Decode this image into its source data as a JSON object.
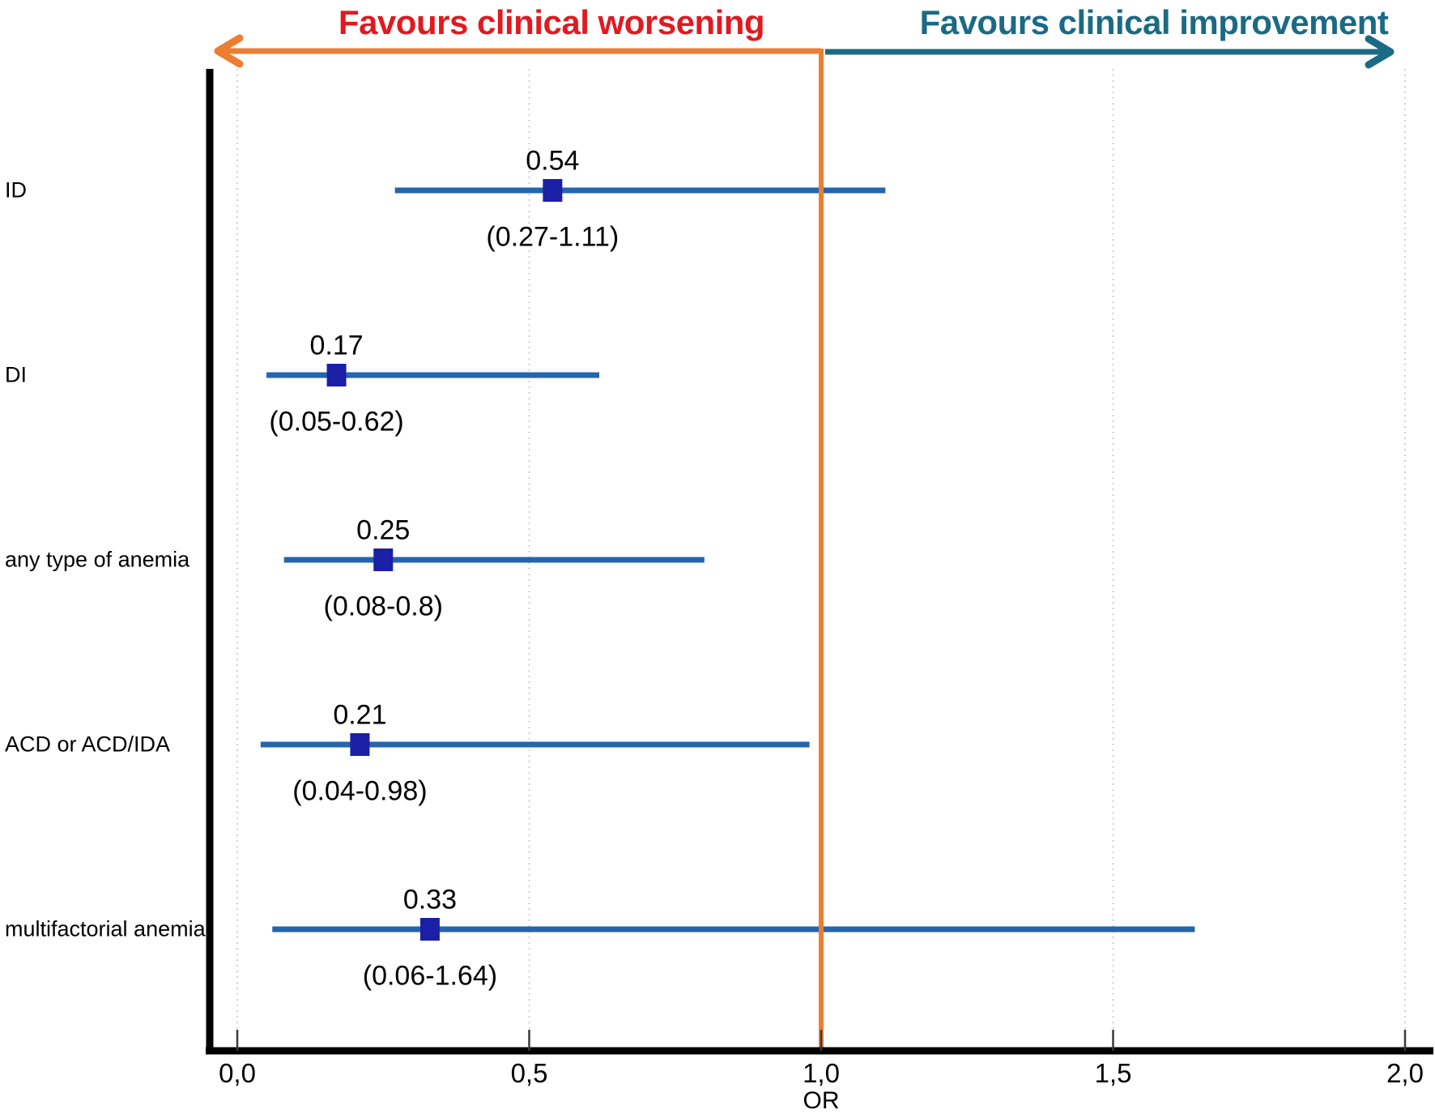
{
  "header": {
    "left_title": "Favours clinical worsening",
    "right_title": "Favours clinical improvement"
  },
  "colors": {
    "worsening_text": "#e01a20",
    "worsening_arrow": "#ed7d31",
    "improvement_text": "#1b6a85",
    "improvement_arrow": "#1b6a85",
    "reference_line": "#ed7d31",
    "ci_line": "#2565ad",
    "marker": "#1b1fa6",
    "axis": "#000000",
    "tick": "#3a3a3a",
    "gridline": "#c4c4c4"
  },
  "chart_data": {
    "type": "forest",
    "xlabel": "OR",
    "xlim": [
      0,
      2.0
    ],
    "reference_value": 1.0,
    "x_tick_values": [
      0,
      0.5,
      1.0,
      1.5,
      2.0
    ],
    "x_ticks": [
      "0,0",
      "0,5",
      "1,0",
      "1,5",
      "2,0"
    ],
    "legend": {
      "left_region_meaning": "Favours clinical worsening",
      "right_region_meaning": "Favours clinical improvement"
    },
    "rows": [
      {
        "label": "ID",
        "or": 0.54,
        "ci_low": 0.27,
        "ci_high": 1.11,
        "value_label": "0.54",
        "ci_label": "(0.27-1.11)"
      },
      {
        "label": "DI",
        "or": 0.17,
        "ci_low": 0.05,
        "ci_high": 0.62,
        "value_label": "0.17",
        "ci_label": "(0.05-0.62)"
      },
      {
        "label": "any type of anemia",
        "or": 0.25,
        "ci_low": 0.08,
        "ci_high": 0.8,
        "value_label": "0.25",
        "ci_label": "(0.08-0.8)"
      },
      {
        "label": "ACD or ACD/IDA",
        "or": 0.21,
        "ci_low": 0.04,
        "ci_high": 0.98,
        "value_label": "0.21",
        "ci_label": "(0.04-0.98)"
      },
      {
        "label": "multifactorial anemia",
        "or": 0.33,
        "ci_low": 0.06,
        "ci_high": 1.64,
        "value_label": "0.33",
        "ci_label": "(0.06-1.64)"
      }
    ]
  }
}
